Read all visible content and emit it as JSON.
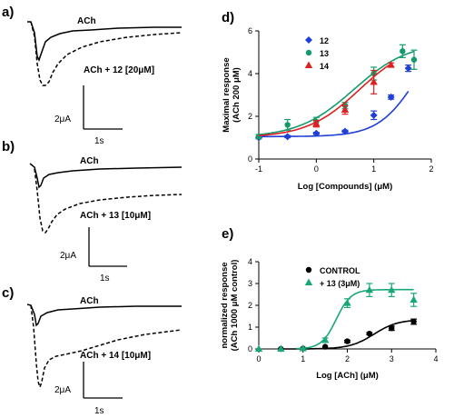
{
  "panels": {
    "a": {
      "letter": "a)",
      "control_label": "ACh",
      "drug_label": "ACh + 12 [20μM]",
      "scale_current": "2μA",
      "scale_time": "1s"
    },
    "b": {
      "letter": "b)",
      "control_label": "ACh",
      "drug_label": "ACh + 13 [10μM]",
      "scale_current": "2μA",
      "scale_time": "1s"
    },
    "c": {
      "letter": "c)",
      "control_label": "ACh",
      "drug_label": "ACh + 14 [10μM]",
      "scale_current": "2μA",
      "scale_time": "1s"
    }
  },
  "chart_data": [
    {
      "id": "d",
      "type": "scatter",
      "letter": "d)",
      "xlabel": "Log [Compounds] (μM)",
      "ylabel": "Maximal response",
      "ylabel2": "(ACh 200 μM)",
      "xlim": [
        -1,
        2
      ],
      "ylim": [
        0,
        6
      ],
      "xticks": [
        -1,
        0,
        1,
        2
      ],
      "yticks": [
        0,
        2,
        4,
        6
      ],
      "legend_position": "top-left",
      "series": [
        {
          "name": "12",
          "color": "#1f3fd6",
          "marker": "diamond",
          "x": [
            -1,
            -0.5,
            0,
            0.5,
            1,
            1.3,
            1.6
          ],
          "y": [
            1.0,
            1.05,
            1.2,
            1.3,
            2.05,
            2.9,
            4.25
          ],
          "err": [
            0.05,
            0.05,
            0.05,
            0.05,
            0.2,
            0.1,
            0.15
          ],
          "fit": {
            "bottom": 1.05,
            "top": 6.5,
            "ec50": 1.75,
            "hill": 1.3
          }
        },
        {
          "name": "13",
          "color": "#139a6a",
          "marker": "circle",
          "x": [
            -1,
            -0.5,
            0,
            0.5,
            1,
            1.5,
            1.7
          ],
          "y": [
            1.05,
            1.6,
            1.75,
            2.5,
            4.0,
            5.05,
            4.65
          ],
          "err": [
            0.1,
            0.25,
            0.2,
            0.15,
            0.3,
            0.3,
            0.45
          ],
          "fit": {
            "bottom": 1.0,
            "top": 5.5,
            "ec50": 0.65,
            "hill": 0.9
          }
        },
        {
          "name": "14",
          "color": "#e02020",
          "marker": "triangle",
          "x": [
            0,
            0.5,
            1,
            1.3
          ],
          "y": [
            1.65,
            2.3,
            3.6,
            4.4
          ],
          "err": [
            0.15,
            0.2,
            0.55,
            0.1
          ],
          "fit": {
            "bottom": 1.0,
            "top": 5.5,
            "ec50": 0.75,
            "hill": 0.95,
            "xmax": 1.3
          }
        }
      ]
    },
    {
      "id": "e",
      "type": "scatter",
      "letter": "e)",
      "xlabel": "Log [ACh] (μM)",
      "ylabel": "normalized response",
      "ylabel2": "(ACh 1000 μM control)",
      "xlim": [
        0,
        4
      ],
      "ylim": [
        0,
        4
      ],
      "xticks": [
        0,
        1,
        2,
        3,
        4
      ],
      "yticks": [
        0,
        1,
        2,
        3,
        4
      ],
      "legend_position": "top-left",
      "series": [
        {
          "name": "CONTROL",
          "color": "#000000",
          "marker": "circle",
          "x": [
            0.5,
            1,
            1.5,
            2,
            2.5,
            3,
            3.5
          ],
          "y": [
            0.0,
            0.02,
            0.1,
            0.35,
            0.7,
            0.95,
            1.25
          ],
          "err": [
            0,
            0,
            0,
            0.05,
            0.05,
            0.1,
            0.12
          ],
          "fit": {
            "bottom": 0.0,
            "top": 1.35,
            "ec50": 2.6,
            "hill": 1.6,
            "xmin": 0.5,
            "xmax": 3.5
          }
        },
        {
          "name": "+ 13 (3μM)",
          "color": "#18a878",
          "marker": "triangle",
          "x": [
            0,
            0.5,
            1,
            1.5,
            2,
            2.5,
            3,
            3.5
          ],
          "y": [
            0.0,
            0.0,
            0.02,
            0.4,
            2.1,
            2.7,
            2.7,
            2.25
          ],
          "err": [
            0,
            0,
            0,
            0.1,
            0.2,
            0.3,
            0.3,
            0.3
          ],
          "fit": {
            "bottom": 0.0,
            "top": 2.72,
            "ec50": 1.75,
            "hill": 2.6,
            "xmin": 0.85,
            "xmax": 3.5
          }
        }
      ]
    }
  ]
}
